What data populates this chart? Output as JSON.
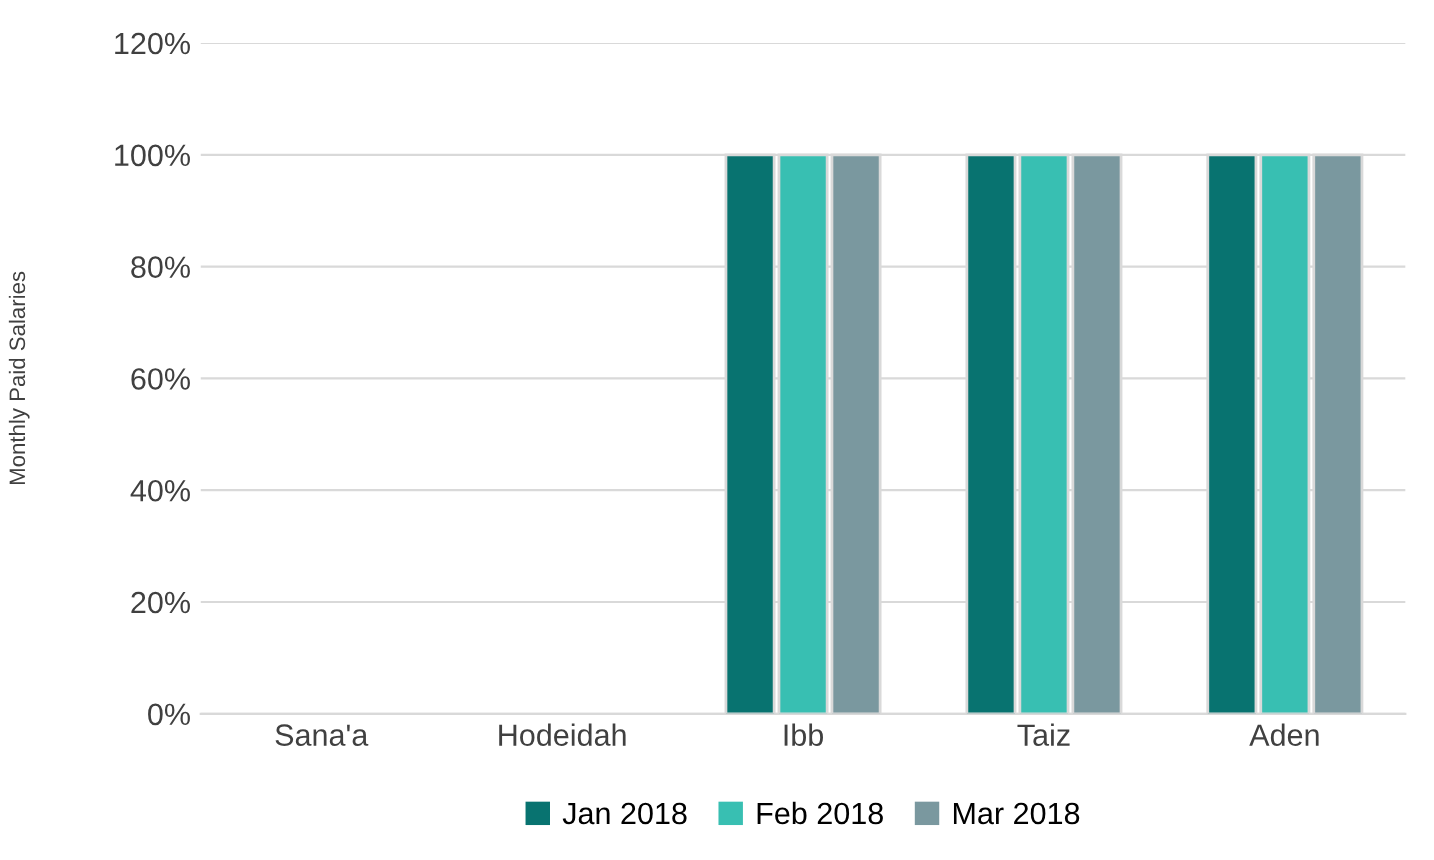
{
  "chart_data": {
    "type": "bar",
    "ylabel": "Monthly Paid Salaries",
    "categories": [
      "Sana'a",
      "Hodeidah",
      "Ibb",
      "Taiz",
      "Aden"
    ],
    "series": [
      {
        "name": "Jan 2018",
        "color": "#087370",
        "values": [
          0,
          0,
          100,
          100,
          100
        ]
      },
      {
        "name": "Feb 2018",
        "color": "#38bfb2",
        "values": [
          0,
          0,
          100,
          100,
          100
        ]
      },
      {
        "name": "Mar 2018",
        "color": "#7a989f",
        "values": [
          0,
          0,
          100,
          100,
          100
        ]
      }
    ],
    "ylim": [
      0,
      120
    ],
    "yticks": [
      {
        "value": 0,
        "label": "0%"
      },
      {
        "value": 20,
        "label": "20%"
      },
      {
        "value": 40,
        "label": "40%"
      },
      {
        "value": 60,
        "label": "60%"
      },
      {
        "value": 80,
        "label": "80%"
      },
      {
        "value": 100,
        "label": "100%"
      },
      {
        "value": 120,
        "label": "120%"
      }
    ],
    "grid": "y",
    "legend": "bottom"
  }
}
